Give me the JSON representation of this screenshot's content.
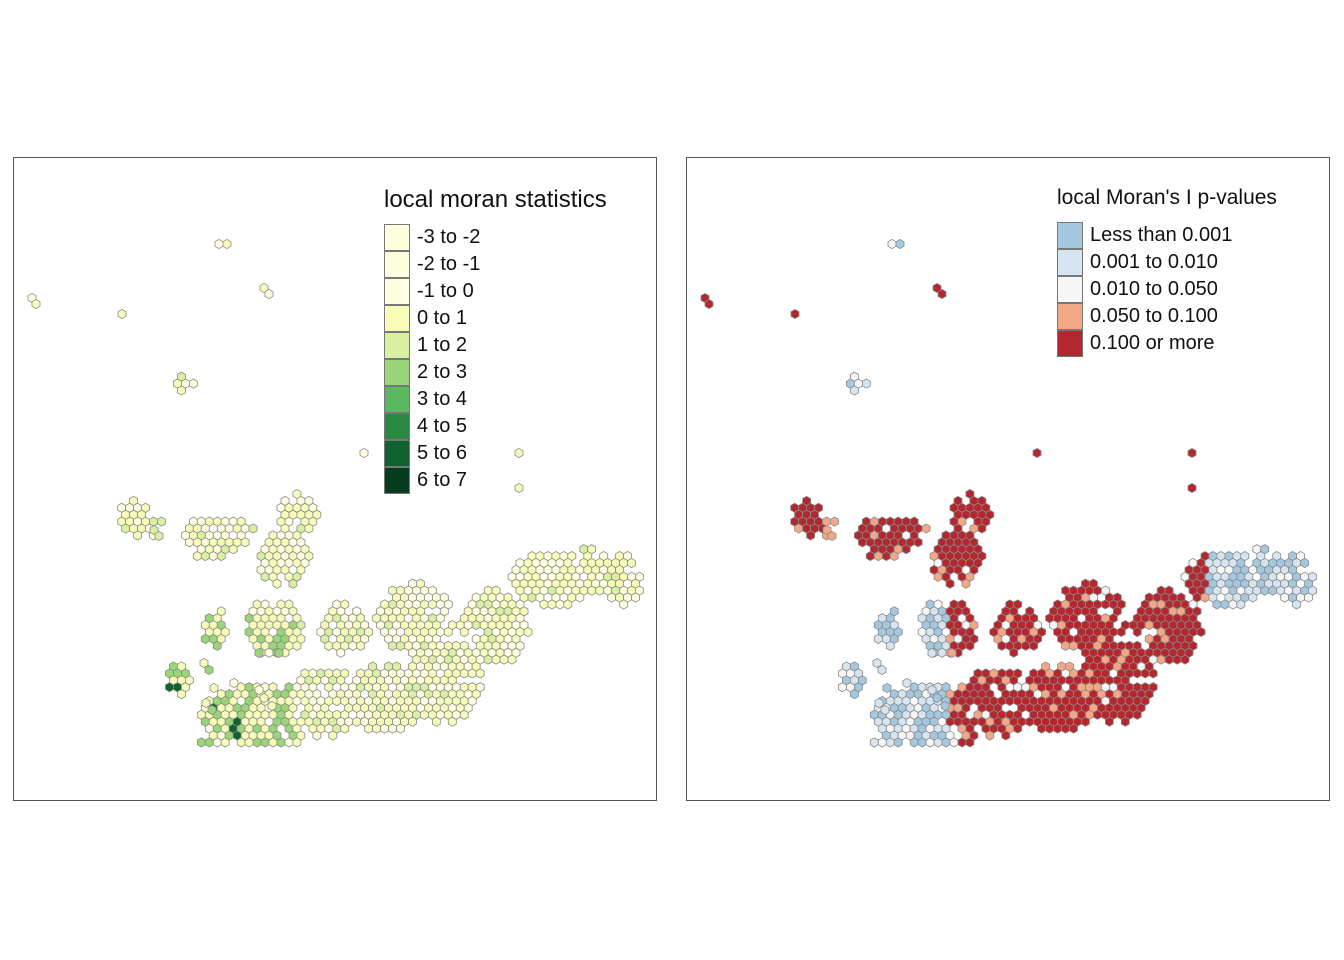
{
  "maps": [
    {
      "legend_title": "local moran statistics",
      "classes": [
        {
          "label": "-3 to -2",
          "color": "#ffffe0"
        },
        {
          "label": "-2 to -1",
          "color": "#ffffe0"
        },
        {
          "label": "-1 to 0",
          "color": "#fffee0"
        },
        {
          "label": "0 to 1",
          "color": "#f7fcb9"
        },
        {
          "label": "1 to 2",
          "color": "#d9f0a3"
        },
        {
          "label": "2 to 3",
          "color": "#9ad679"
        },
        {
          "label": "3 to 4",
          "color": "#5bb862"
        },
        {
          "label": "4 to 5",
          "color": "#2a8a42"
        },
        {
          "label": "5 to 6",
          "color": "#10632e"
        },
        {
          "label": "6 to 7",
          "color": "#073d1f"
        }
      ]
    },
    {
      "legend_title": "local Moran's I p-values",
      "classes": [
        {
          "label": "Less than 0.001",
          "color": "#a3c8e0"
        },
        {
          "label": "0.001 to 0.010",
          "color": "#d6e5f1"
        },
        {
          "label": "0.010 to 0.050",
          "color": "#f6f6f6"
        },
        {
          "label": "0.050 to 0.100",
          "color": "#f2a886"
        },
        {
          "label": "0.100 or more",
          "color": "#b3272e"
        }
      ]
    }
  ]
}
